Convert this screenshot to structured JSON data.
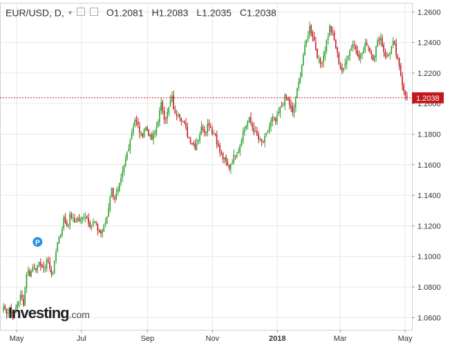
{
  "header": {
    "symbol": "EUR/USD, D,",
    "dropdown_glyph": "▾",
    "open_label": "O",
    "open": "1.2081",
    "high_label": "H",
    "high": "1.2083",
    "low_label": "L",
    "low": "1.2035",
    "close_label": "C",
    "close": "1.2038"
  },
  "brand": {
    "name": "Investing",
    "suffix": ".com"
  },
  "colors": {
    "up": "#2ca02c",
    "down": "#c0191d",
    "price_line": "#c0191d",
    "grid": "#e6e6e6"
  },
  "chart_data": {
    "type": "candlestick",
    "title": "EUR/USD, D,",
    "x_ticks": [
      "May",
      "Jul",
      "Sep",
      "Nov",
      "2018",
      "Mar",
      "May"
    ],
    "y_ticks": [
      "1.2600",
      "1.2400",
      "1.2200",
      "1.2000",
      "1.1800",
      "1.1600",
      "1.1400",
      "1.1200",
      "1.1000",
      "1.0800",
      "1.0600"
    ],
    "ylim": [
      1.052,
      1.266
    ],
    "last_price": "1.2038",
    "marker": {
      "label": "P",
      "index": 22,
      "price": 1.1095
    },
    "date_range": [
      "2017-04-18",
      "2018-05-01"
    ],
    "path": [
      [
        1.067,
        1.064,
        1.066
      ],
      [
        1.061,
        1.068,
        1.074,
        1.07
      ],
      [
        1.092,
        1.088,
        1.095,
        1.092,
        1.096
      ],
      [
        1.09,
        1.1,
        1.089,
        1.092
      ],
      [
        1.11,
        1.115,
        1.125,
        1.12,
        1.128,
        1.122
      ],
      [
        1.125,
        1.123,
        1.128,
        1.125,
        1.12,
        1.123
      ],
      [
        1.118,
        1.115,
        1.12,
        1.128,
        1.145,
        1.138
      ],
      [
        1.142,
        1.15,
        1.16,
        1.17,
        1.18,
        1.19
      ],
      [
        1.185,
        1.178,
        1.185,
        1.182,
        1.176,
        1.18
      ],
      [
        1.19,
        1.2,
        1.19,
        1.195,
        1.205,
        1.192
      ],
      [
        1.195,
        1.19,
        1.185,
        1.178,
        1.175,
        1.172
      ],
      [
        1.178,
        1.185,
        1.182,
        1.188,
        1.182,
        1.18
      ],
      [
        1.17,
        1.165,
        1.162,
        1.158,
        1.162,
        1.168
      ],
      [
        1.17,
        1.18,
        1.185,
        1.19,
        1.185,
        1.18
      ],
      [
        1.176,
        1.174,
        1.178,
        1.185,
        1.19,
        1.188
      ],
      [
        1.195,
        1.2,
        1.205,
        1.2,
        1.193,
        1.205
      ],
      [
        1.215,
        1.23,
        1.24,
        1.25,
        1.245
      ],
      [
        1.235,
        1.225,
        1.23,
        1.24,
        1.25,
        1.245
      ],
      [
        1.235,
        1.225,
        1.22,
        1.23,
        1.235
      ],
      [
        1.24,
        1.235,
        1.23,
        1.235,
        1.24
      ],
      [
        1.235,
        1.23,
        1.238,
        1.245,
        1.235
      ],
      [
        1.23,
        1.235,
        1.24,
        1.23,
        1.22,
        1.21,
        1.2038
      ]
    ]
  }
}
